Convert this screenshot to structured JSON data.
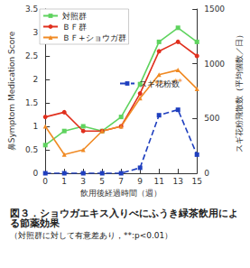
{
  "chart_data": {
    "type": "line",
    "title": "図３．ショウガエキス入りべにふうき緑茶飲用による節薬効果",
    "subtitle": "（対照群に対して有意差あり，**:p<0.01）",
    "x_label": "飲用後経過時間（週）",
    "y_label": "鼻Symptom Medication Score",
    "y2_label": "スギ花粉飛散数（平均個数／日）",
    "categories": [
      "0",
      "1",
      "3",
      "5",
      "7",
      "9",
      "11",
      "13",
      "15"
    ],
    "series": [
      {
        "name": "対照群",
        "color": "#5fd35f",
        "marker": "square",
        "line_style": "solid",
        "values": [
          0.6,
          0.9,
          1.0,
          0.9,
          1.2,
          1.9,
          2.8,
          3.1,
          2.8
        ]
      },
      {
        "name": "ＢＦ群",
        "color": "#e0301e",
        "marker": "circle",
        "line_style": "solid",
        "values": [
          1.2,
          1.3,
          0.9,
          0.9,
          1.0,
          1.7,
          2.6,
          2.8,
          2.5
        ]
      },
      {
        "name": "ＢＦ+ショウガ群",
        "color": "#f08a24",
        "marker": "triangle",
        "line_style": "solid",
        "values": [
          1.0,
          0.4,
          0.5,
          0.9,
          1.0,
          1.6,
          2.1,
          2.2,
          1.8
        ]
      },
      {
        "name": "スギ花粉数",
        "color": "#1f3fbf",
        "marker": "square",
        "line_style": "dashed",
        "axis": "y2",
        "values": [
          0,
          0,
          0,
          0,
          0,
          50,
          530,
          580,
          170
        ]
      }
    ],
    "annotations": [
      {
        "text": "**",
        "x": "11",
        "y": 1.9
      },
      {
        "text": "**",
        "x": "13",
        "y": 1.95
      }
    ],
    "ylim": [
      0,
      3.5
    ],
    "yticks": [
      0,
      0.5,
      1,
      1.5,
      2,
      2.5,
      3,
      3.5
    ],
    "y2lim": [
      0,
      1500
    ],
    "y2ticks": [
      0,
      500,
      1000,
      1500
    ],
    "legend": "upper left",
    "grid": false
  }
}
